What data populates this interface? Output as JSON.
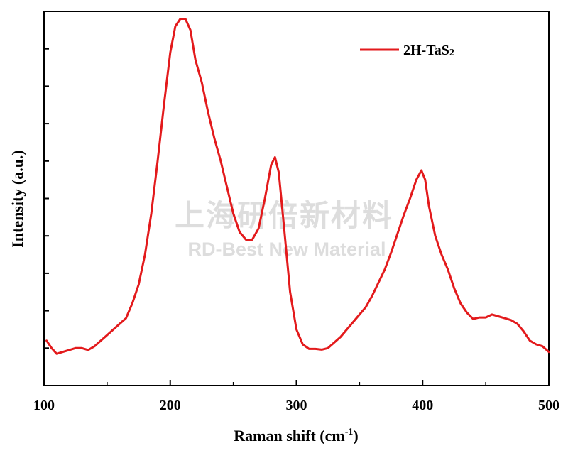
{
  "chart_data": {
    "type": "line",
    "title": "",
    "xlabel": "Raman shift (cm",
    "xlabel_sup": "-1",
    "xlabel_close": ")",
    "ylabel": "Intensity (a.u.)",
    "xlim": [
      100,
      500
    ],
    "ylim": [
      0,
      10
    ],
    "x_ticks": [
      100,
      200,
      300,
      400,
      500
    ],
    "x_minor_ticks": [
      150,
      250,
      350,
      450
    ],
    "y_ticks": [
      1,
      2,
      3,
      4,
      5,
      6,
      7,
      8,
      9
    ],
    "y_tick_labels_shown": false,
    "grid": false,
    "legend_position": "top-right",
    "series": [
      {
        "name": "2H-TaS",
        "name_sub": "2",
        "color": "#e31a1c",
        "x": [
          102,
          106,
          110,
          115,
          120,
          125,
          130,
          135,
          140,
          145,
          150,
          155,
          160,
          165,
          170,
          175,
          180,
          185,
          190,
          195,
          200,
          204,
          208,
          212,
          216,
          220,
          225,
          230,
          235,
          240,
          245,
          250,
          255,
          260,
          265,
          270,
          275,
          280,
          283,
          286,
          290,
          295,
          300,
          305,
          310,
          315,
          320,
          325,
          330,
          335,
          340,
          345,
          350,
          355,
          360,
          365,
          370,
          375,
          380,
          385,
          390,
          395,
          399,
          402,
          405,
          410,
          415,
          420,
          425,
          430,
          435,
          440,
          445,
          450,
          455,
          460,
          465,
          470,
          475,
          480,
          485,
          490,
          495,
          500
        ],
        "y": [
          1.2,
          1.0,
          0.85,
          0.9,
          0.95,
          1.0,
          1.0,
          0.95,
          1.05,
          1.2,
          1.35,
          1.5,
          1.65,
          1.8,
          2.2,
          2.7,
          3.5,
          4.6,
          6.0,
          7.5,
          8.9,
          9.6,
          9.8,
          9.8,
          9.5,
          8.7,
          8.1,
          7.3,
          6.6,
          6.0,
          5.3,
          4.6,
          4.1,
          3.9,
          3.9,
          4.2,
          5.0,
          5.9,
          6.1,
          5.7,
          4.3,
          2.5,
          1.5,
          1.1,
          0.98,
          0.98,
          0.96,
          1.0,
          1.15,
          1.3,
          1.5,
          1.7,
          1.9,
          2.1,
          2.4,
          2.75,
          3.1,
          3.55,
          4.05,
          4.55,
          5.0,
          5.5,
          5.75,
          5.5,
          4.8,
          4.0,
          3.5,
          3.1,
          2.6,
          2.2,
          1.95,
          1.78,
          1.82,
          1.82,
          1.9,
          1.85,
          1.8,
          1.75,
          1.65,
          1.45,
          1.2,
          1.1,
          1.05,
          0.9
        ]
      }
    ]
  },
  "watermark": {
    "line1": "上海研倍新材料",
    "line2": "RD-Best New Material"
  }
}
